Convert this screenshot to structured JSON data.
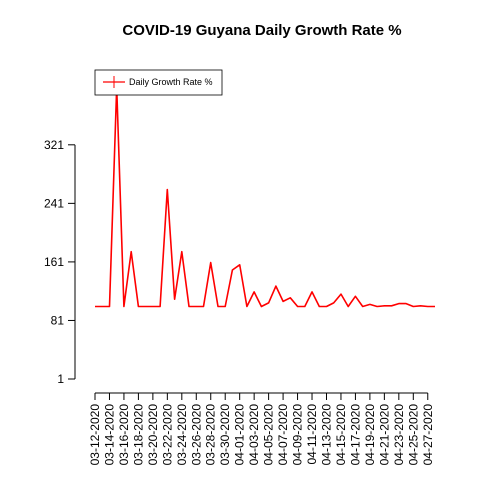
{
  "chart_data": {
    "type": "line",
    "title": "COVID-19 Guyana Daily Growth Rate %",
    "xlabel": "",
    "ylabel": "",
    "x": [
      "03-12-2020",
      "03-13-2020",
      "03-14-2020",
      "03-15-2020",
      "03-16-2020",
      "03-17-2020",
      "03-18-2020",
      "03-19-2020",
      "03-20-2020",
      "03-21-2020",
      "03-22-2020",
      "03-23-2020",
      "03-24-2020",
      "03-25-2020",
      "03-26-2020",
      "03-27-2020",
      "03-28-2020",
      "03-29-2020",
      "03-30-2020",
      "03-31-2020",
      "04-01-2020",
      "04-02-2020",
      "04-03-2020",
      "04-04-2020",
      "04-05-2020",
      "04-06-2020",
      "04-07-2020",
      "04-08-2020",
      "04-09-2020",
      "04-10-2020",
      "04-11-2020",
      "04-12-2020",
      "04-13-2020",
      "04-14-2020",
      "04-15-2020",
      "04-16-2020",
      "04-17-2020",
      "04-18-2020",
      "04-19-2020",
      "04-20-2020",
      "04-21-2020",
      "04-22-2020",
      "04-23-2020",
      "04-24-2020",
      "04-25-2020",
      "04-26-2020",
      "04-27-2020",
      "04-28-2020"
    ],
    "x_tick_labels": [
      "03-12-2020",
      "03-14-2020",
      "03-16-2020",
      "03-18-2020",
      "03-20-2020",
      "03-22-2020",
      "03-24-2020",
      "03-26-2020",
      "03-28-2020",
      "03-30-2020",
      "04-01-2020",
      "04-03-2020",
      "04-05-2020",
      "04-07-2020",
      "04-09-2020",
      "04-11-2020",
      "04-13-2020",
      "04-15-2020",
      "04-17-2020",
      "04-19-2020",
      "04-21-2020",
      "04-23-2020",
      "04-25-2020",
      "04-27-2020"
    ],
    "y_ticks": [
      1,
      81,
      161,
      241,
      321
    ],
    "ylim": [
      1,
      400
    ],
    "series": [
      {
        "name": "Daily Growth Rate %",
        "color": "#ff0000",
        "values": [
          100,
          100,
          100,
          400,
          100,
          175,
          100,
          100,
          100,
          100,
          260,
          110,
          175,
          100,
          100,
          100,
          160,
          100,
          100,
          150,
          157,
          100,
          120,
          100,
          105,
          128,
          107,
          112,
          100,
          100,
          120,
          100,
          100,
          105,
          117,
          100,
          114,
          100,
          103,
          100,
          101,
          101,
          104,
          104,
          100,
          101,
          100,
          100
        ]
      }
    ],
    "legend": {
      "position": "top-left",
      "entries": [
        "Daily Growth Rate %"
      ]
    },
    "grid": false
  }
}
